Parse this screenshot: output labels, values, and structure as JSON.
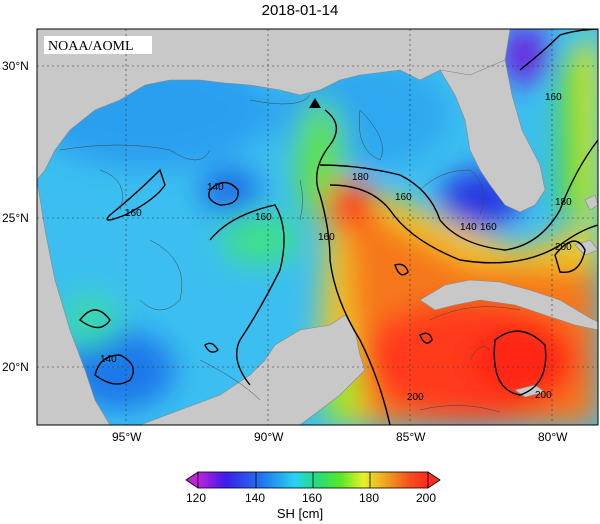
{
  "title": "2018-01-14",
  "credit": "NOAA/AOML",
  "lat_labels": [
    "30°N",
    "25°N",
    "20°N"
  ],
  "lon_labels": [
    "95°W",
    "90°W",
    "85°W",
    "80°W"
  ],
  "contour_labels": [
    "140",
    "160",
    "180",
    "200"
  ],
  "colorbar": {
    "title": "SH [cm]",
    "ticks": [
      "120",
      "140",
      "160",
      "180",
      "200"
    ],
    "range": [
      120,
      200
    ]
  },
  "marker": "triangle-buoy-icon",
  "colors": {
    "land": "#c8c8c8",
    "low": "#8a1ec8",
    "blue": "#1e50e6",
    "cyan": "#28c8f0",
    "green": "#28d728",
    "yellow": "#f0f028",
    "orange": "#f08c1e",
    "red": "#ff3a1e"
  }
}
